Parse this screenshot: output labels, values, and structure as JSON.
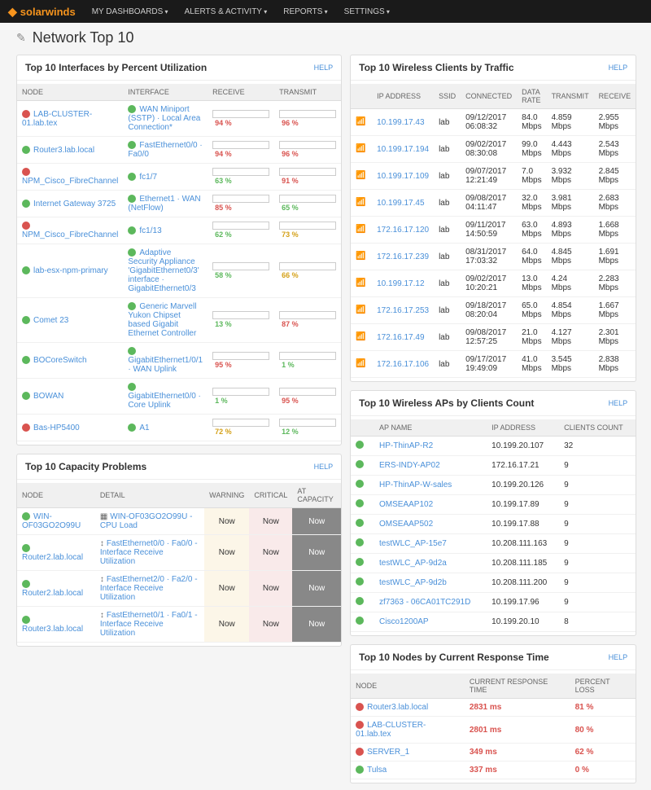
{
  "topbar": {
    "brand": "solarwinds",
    "nav": [
      "MY DASHBOARDS",
      "ALERTS & ACTIVITY",
      "REPORTS",
      "SETTINGS"
    ]
  },
  "page_title": "Network Top 10",
  "help_label": "HELP",
  "panels": {
    "interfaces": {
      "title": "Top 10 Interfaces by Percent Utilization",
      "headers": [
        "NODE",
        "INTERFACE",
        "RECEIVE",
        "TRANSMIT"
      ],
      "rows": [
        {
          "node_status": "red",
          "node": "LAB-CLUSTER-01.lab.tex",
          "if_status": "green",
          "iface": "WAN Miniport (SSTP) · Local Area Connection*",
          "recv": {
            "v": 94,
            "c": "red"
          },
          "xmit": {
            "v": 96,
            "c": "red"
          }
        },
        {
          "node_status": "green",
          "node": "Router3.lab.local",
          "if_status": "green",
          "iface": "FastEthernet0/0 · Fa0/0",
          "recv": {
            "v": 94,
            "c": "red"
          },
          "xmit": {
            "v": 96,
            "c": "red"
          }
        },
        {
          "node_status": "red",
          "node": "NPM_Cisco_FibreChannel",
          "if_status": "green",
          "iface": "fc1/7",
          "recv": {
            "v": 63,
            "c": "green"
          },
          "xmit": {
            "v": 91,
            "c": "red"
          }
        },
        {
          "node_status": "green",
          "node": "Internet Gateway 3725",
          "if_status": "green",
          "iface": "Ethernet1 · WAN (NetFlow)",
          "recv": {
            "v": 85,
            "c": "red"
          },
          "xmit": {
            "v": 65,
            "c": "green"
          }
        },
        {
          "node_status": "red",
          "node": "NPM_Cisco_FibreChannel",
          "if_status": "green",
          "iface": "fc1/13",
          "recv": {
            "v": 62,
            "c": "green"
          },
          "xmit": {
            "v": 73,
            "c": "yellow"
          }
        },
        {
          "node_status": "green",
          "node": "lab-esx-npm-primary",
          "if_status": "green",
          "iface": "Adaptive Security Appliance 'GigabitEthernet0/3' interface · GigabitEthernet0/3",
          "recv": {
            "v": 58,
            "c": "green"
          },
          "xmit": {
            "v": 66,
            "c": "yellow"
          }
        },
        {
          "node_status": "green",
          "node": "Comet 23",
          "if_status": "green",
          "iface": "Generic Marvell Yukon Chipset based Gigabit Ethernet Controller",
          "recv": {
            "v": 13,
            "c": "green"
          },
          "xmit": {
            "v": 87,
            "c": "red"
          }
        },
        {
          "node_status": "green",
          "node": "BOCoreSwitch",
          "if_status": "green",
          "iface": "GigabitEthernet1/0/1 · WAN Uplink",
          "recv": {
            "v": 95,
            "c": "red"
          },
          "xmit": {
            "v": 1,
            "c": "green"
          }
        },
        {
          "node_status": "green",
          "node": "BOWAN",
          "if_status": "green",
          "iface": "GigabitEthernet0/0 · Core Uplink",
          "recv": {
            "v": 1,
            "c": "green"
          },
          "xmit": {
            "v": 95,
            "c": "red"
          }
        },
        {
          "node_status": "red",
          "node": "Bas-HP5400",
          "if_status": "green",
          "iface": "A1",
          "recv": {
            "v": 72,
            "c": "yellow"
          },
          "xmit": {
            "v": 12,
            "c": "green"
          }
        }
      ]
    },
    "capacity": {
      "title": "Top 10 Capacity Problems",
      "headers": [
        "NODE",
        "DETAIL",
        "WARNING",
        "CRITICAL",
        "AT CAPACITY"
      ],
      "now": "Now",
      "rows": [
        {
          "node": "WIN-OF03GO2O99U",
          "detail": "WIN-OF03GO2O99U - CPU Load",
          "icon": "cpu"
        },
        {
          "node": "Router2.lab.local",
          "detail": "FastEthernet0/0 · Fa0/0 - Interface Receive Utilization",
          "icon": "if"
        },
        {
          "node": "Router2.lab.local",
          "detail": "FastEthernet2/0 · Fa2/0 - Interface Receive Utilization",
          "icon": "if"
        },
        {
          "node": "Router3.lab.local",
          "detail": "FastEthernet0/1 · Fa0/1 - Interface Receive Utilization",
          "icon": "if"
        }
      ]
    },
    "wireless_clients": {
      "title": "Top 10 Wireless Clients by Traffic",
      "headers": [
        "IP ADDRESS",
        "SSID",
        "CONNECTED",
        "DATA RATE",
        "TRANSMIT",
        "RECEIVE"
      ],
      "rows": [
        {
          "ip": "10.199.17.43",
          "ssid": "lab",
          "conn": "09/12/2017 06:08:32",
          "rate": "84.0 Mbps",
          "tx": "4.859 Mbps",
          "rx": "2.955 Mbps"
        },
        {
          "ip": "10.199.17.194",
          "ssid": "lab",
          "conn": "09/02/2017 08:30:08",
          "rate": "99.0 Mbps",
          "tx": "4.443 Mbps",
          "rx": "2.543 Mbps"
        },
        {
          "ip": "10.199.17.109",
          "ssid": "lab",
          "conn": "09/07/2017 12:21:49",
          "rate": "7.0 Mbps",
          "tx": "3.932 Mbps",
          "rx": "2.845 Mbps"
        },
        {
          "ip": "10.199.17.45",
          "ssid": "lab",
          "conn": "09/08/2017 04:11:47",
          "rate": "32.0 Mbps",
          "tx": "3.981 Mbps",
          "rx": "2.683 Mbps"
        },
        {
          "ip": "172.16.17.120",
          "ssid": "lab",
          "conn": "09/11/2017 14:50:59",
          "rate": "63.0 Mbps",
          "tx": "4.893 Mbps",
          "rx": "1.668 Mbps"
        },
        {
          "ip": "172.16.17.239",
          "ssid": "lab",
          "conn": "08/31/2017 17:03:32",
          "rate": "64.0 Mbps",
          "tx": "4.845 Mbps",
          "rx": "1.691 Mbps"
        },
        {
          "ip": "10.199.17.12",
          "ssid": "lab",
          "conn": "09/02/2017 10:20:21",
          "rate": "13.0 Mbps",
          "tx": "4.24 Mbps",
          "rx": "2.283 Mbps"
        },
        {
          "ip": "172.16.17.253",
          "ssid": "lab",
          "conn": "09/18/2017 08:20:04",
          "rate": "65.0 Mbps",
          "tx": "4.854 Mbps",
          "rx": "1.667 Mbps"
        },
        {
          "ip": "172.16.17.49",
          "ssid": "lab",
          "conn": "09/08/2017 12:57:25",
          "rate": "21.0 Mbps",
          "tx": "4.127 Mbps",
          "rx": "2.301 Mbps"
        },
        {
          "ip": "172.16.17.106",
          "ssid": "lab",
          "conn": "09/17/2017 19:49:09",
          "rate": "41.0 Mbps",
          "tx": "3.545 Mbps",
          "rx": "2.838 Mbps"
        }
      ]
    },
    "wireless_aps": {
      "title": "Top 10 Wireless APs by Clients Count",
      "headers": [
        "AP NAME",
        "IP ADDRESS",
        "CLIENTS COUNT"
      ],
      "rows": [
        {
          "name": "HP-ThinAP-R2",
          "ip": "10.199.20.107",
          "count": "32"
        },
        {
          "name": "ERS-INDY-AP02",
          "ip": "172.16.17.21",
          "count": "9"
        },
        {
          "name": "HP-ThinAP-W-sales",
          "ip": "10.199.20.126",
          "count": "9"
        },
        {
          "name": "OMSEAAP102",
          "ip": "10.199.17.89",
          "count": "9"
        },
        {
          "name": "OMSEAAP502",
          "ip": "10.199.17.88",
          "count": "9"
        },
        {
          "name": "testWLC_AP-15e7",
          "ip": "10.208.111.163",
          "count": "9"
        },
        {
          "name": "testWLC_AP-9d2a",
          "ip": "10.208.111.185",
          "count": "9"
        },
        {
          "name": "testWLC_AP-9d2b",
          "ip": "10.208.111.200",
          "count": "9"
        },
        {
          "name": "zf7363 - 06CA01TC291D",
          "ip": "10.199.17.96",
          "count": "9"
        },
        {
          "name": "Cisco1200AP",
          "ip": "10.199.20.10",
          "count": "8"
        }
      ]
    },
    "response_time": {
      "title": "Top 10 Nodes by Current Response Time",
      "headers": [
        "NODE",
        "CURRENT RESPONSE TIME",
        "PERCENT LOSS"
      ],
      "rows": [
        {
          "status": "red",
          "node": "Router3.lab.local",
          "rt": "2831 ms",
          "loss": "81 %"
        },
        {
          "status": "red",
          "node": "LAB-CLUSTER-01.lab.tex",
          "rt": "2801 ms",
          "loss": "80 %"
        },
        {
          "status": "red",
          "node": "SERVER_1",
          "rt": "349 ms",
          "loss": "62 %"
        },
        {
          "status": "green",
          "node": "Tulsa",
          "rt": "337 ms",
          "loss": "0 %"
        }
      ]
    }
  }
}
